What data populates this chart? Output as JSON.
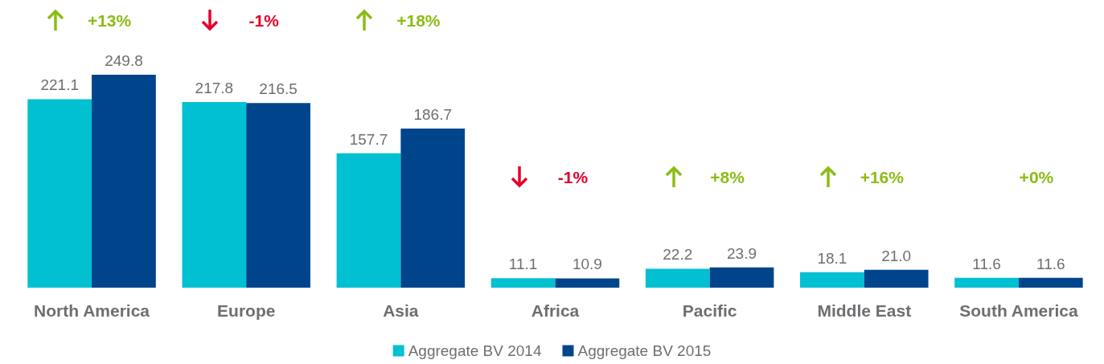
{
  "chart_data": {
    "type": "bar",
    "categories": [
      "North America",
      "Europe",
      "Asia",
      "Africa",
      "Pacific",
      "Middle East",
      "South America"
    ],
    "series": [
      {
        "name": "Aggregate BV 2014",
        "color": "#00c0d2",
        "values": [
          221.1,
          217.8,
          157.7,
          11.1,
          22.2,
          18.1,
          11.6
        ],
        "value_labels": [
          "221.1",
          "217.8",
          "157.7",
          "11.1",
          "22.2",
          "18.1",
          "11.6"
        ]
      },
      {
        "name": "Aggregate BV 2015",
        "color": "#00458c",
        "values": [
          249.8,
          216.5,
          186.7,
          10.9,
          23.9,
          21.0,
          11.6
        ],
        "value_labels": [
          "249.8",
          "216.5",
          "186.7",
          "10.9",
          "23.9",
          "21.0",
          "11.6"
        ]
      }
    ],
    "legend": "bottom",
    "grid": false,
    "annotations": [
      "+13%",
      "-1%",
      "+18%",
      "-1%",
      "+8%",
      "+16%",
      "+0%"
    ]
  }
}
